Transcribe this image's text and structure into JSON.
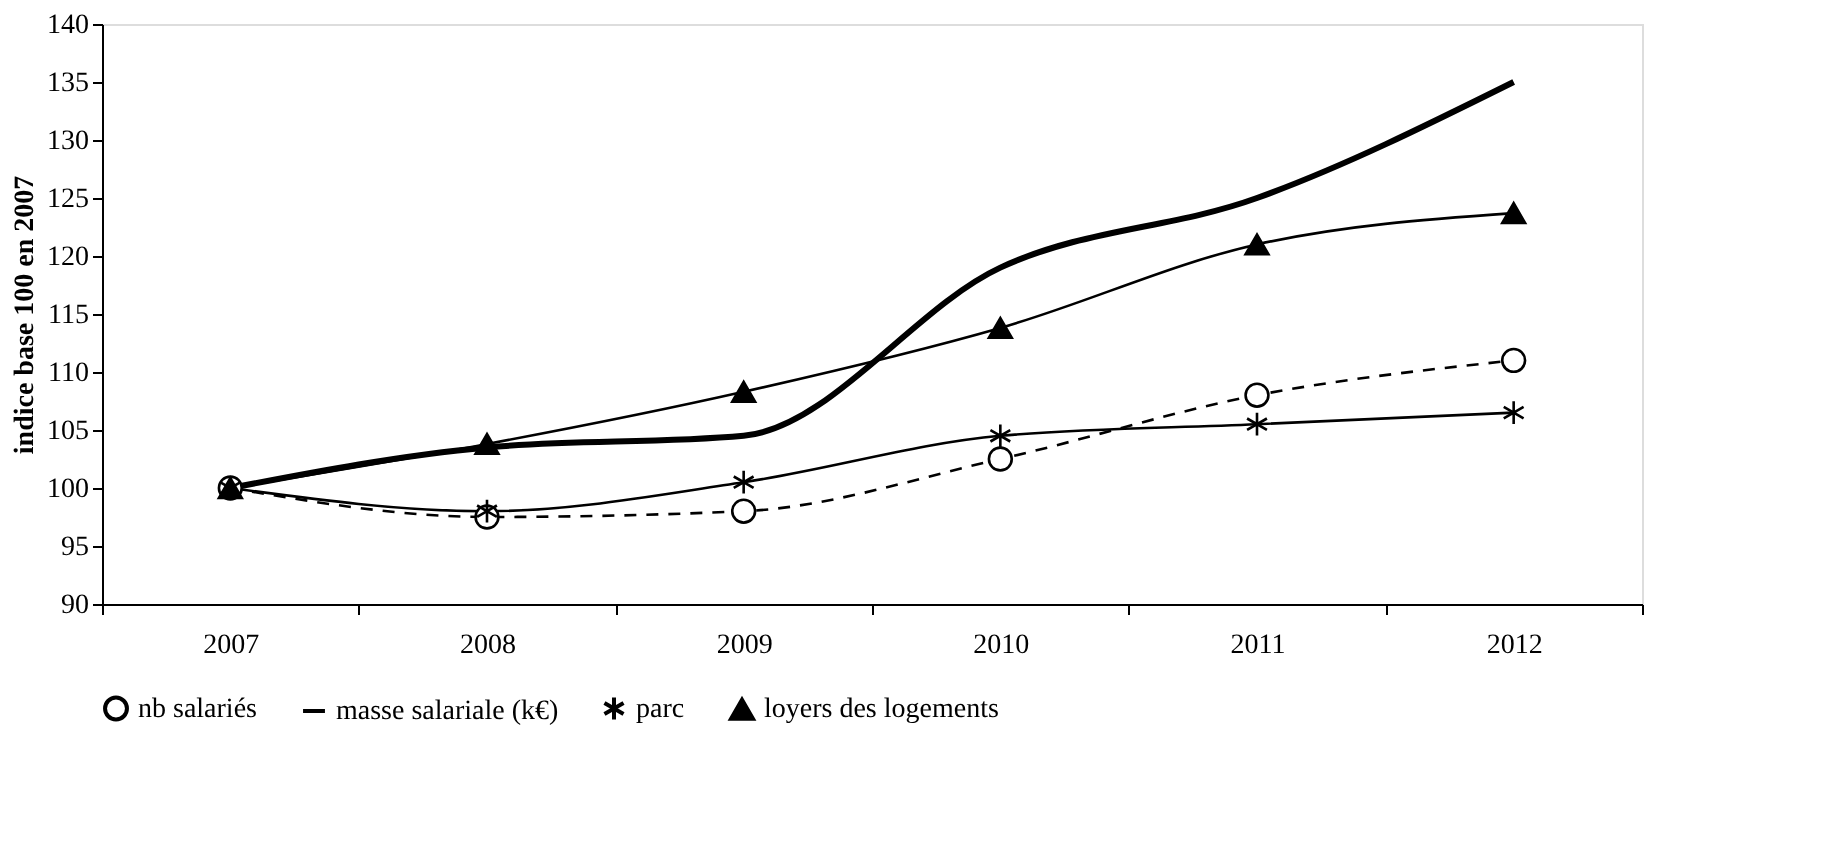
{
  "chart_data": {
    "type": "line",
    "ylabel": "indice base 100 en 2007",
    "categories": [
      "2007",
      "2008",
      "2009",
      "2010",
      "2011",
      "2012"
    ],
    "ylim": [
      90,
      140
    ],
    "yticks": [
      90,
      95,
      100,
      105,
      110,
      115,
      120,
      125,
      130,
      135,
      140
    ],
    "grid": false,
    "legend": "bottom",
    "series": [
      {
        "name": "nb salariés",
        "color": "#000000",
        "marker": "circle",
        "line_style": "dashed",
        "values": [
          100,
          97.5,
          98,
          102.5,
          108,
          111
        ]
      },
      {
        "name": "masse salariale (k€)",
        "color": "#000000",
        "marker": "none",
        "line_style": "solid",
        "values": [
          100,
          103.5,
          104.5,
          119,
          125,
          135
        ]
      },
      {
        "name": "parc",
        "color": "#000000",
        "marker": "cross",
        "line_style": "solid",
        "values": [
          100,
          98,
          100.5,
          104.5,
          105.5,
          106.5
        ]
      },
      {
        "name": "loyers des logements",
        "color": "#000000",
        "marker": "triangle",
        "line_style": "solid",
        "values": [
          100,
          103.8,
          108.3,
          113.8,
          121,
          123.7
        ]
      }
    ]
  }
}
